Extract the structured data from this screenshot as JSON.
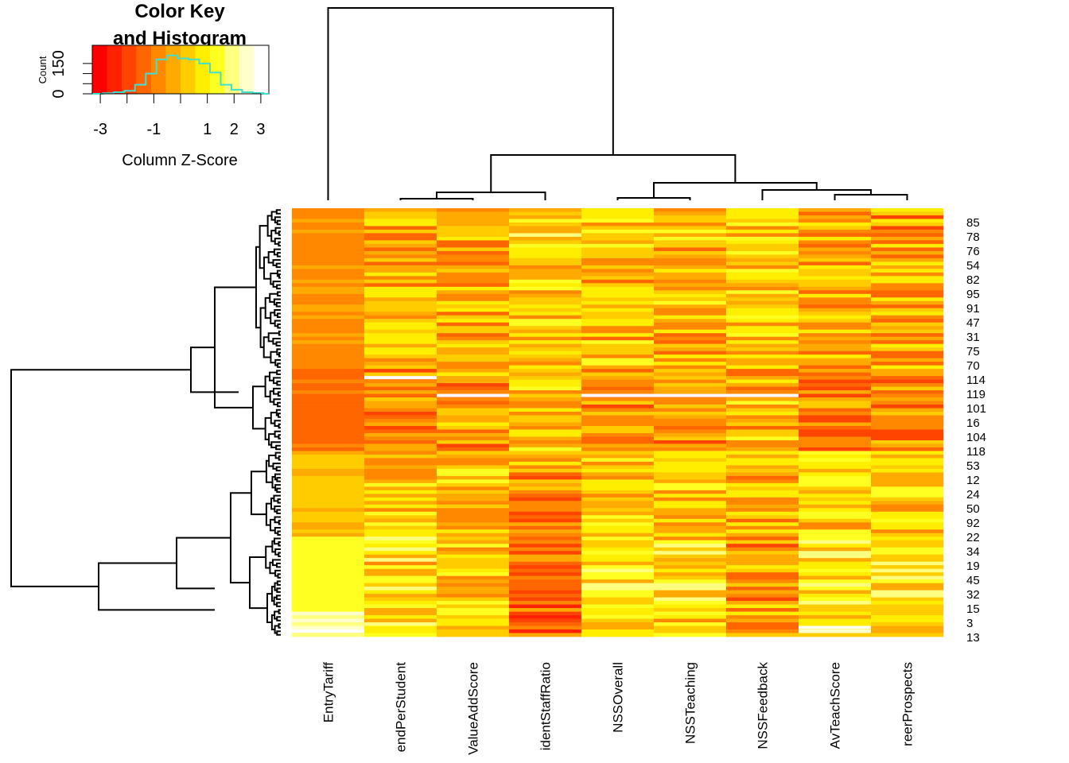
{
  "chart_data": {
    "type": "heatmap",
    "columns": [
      "EntryTariff",
      "endPerStudent",
      "ValueAddScore",
      "identStaffRatio",
      "NSSOverall",
      "NSSTeaching",
      "NSSFeedback",
      "AvTeachScore",
      "reerProspects"
    ],
    "row_labels": [
      "85",
      "78",
      "76",
      "54",
      "82",
      "95",
      "91",
      "47",
      "31",
      "75",
      "70",
      "114",
      "119",
      "101",
      "16",
      "104",
      "118",
      "53",
      "12",
      "24",
      "50",
      "92",
      "22",
      "34",
      "19",
      "45",
      "32",
      "15",
      "3",
      "13"
    ],
    "row_count": 120,
    "color_scale": {
      "colors": [
        "#ff0000",
        "#ff2100",
        "#ff4400",
        "#ff6600",
        "#ff8800",
        "#ffaa00",
        "#ffcc00",
        "#ffee00",
        "#ffff22",
        "#ffff80",
        "#ffffcc",
        "#ffffff"
      ],
      "z_range": [
        -3.3,
        3.3
      ]
    },
    "key": {
      "title_line1": "Color Key",
      "title_line2": "and Histogram",
      "xlabel": "Column Z-Score",
      "ylabel": "Count",
      "x_ticks": [
        "-3",
        "-1",
        "1",
        "2",
        "3"
      ],
      "x_tick_values": [
        -3,
        -1,
        1,
        2,
        3
      ],
      "y_ticks": [
        "0",
        "150"
      ],
      "y_tick_values": [
        0,
        150
      ],
      "histogram_color": "#40e0d0",
      "histogram_bins": [
        -3.3,
        -2.9,
        -2.5,
        -2.1,
        -1.7,
        -1.3,
        -0.9,
        -0.5,
        -0.1,
        0.3,
        0.7,
        1.1,
        1.5,
        1.9,
        2.3,
        2.7,
        3.1,
        3.3
      ],
      "histogram_counts": [
        0,
        3,
        8,
        15,
        45,
        100,
        170,
        190,
        175,
        170,
        150,
        105,
        45,
        20,
        8,
        4,
        0
      ]
    }
  }
}
